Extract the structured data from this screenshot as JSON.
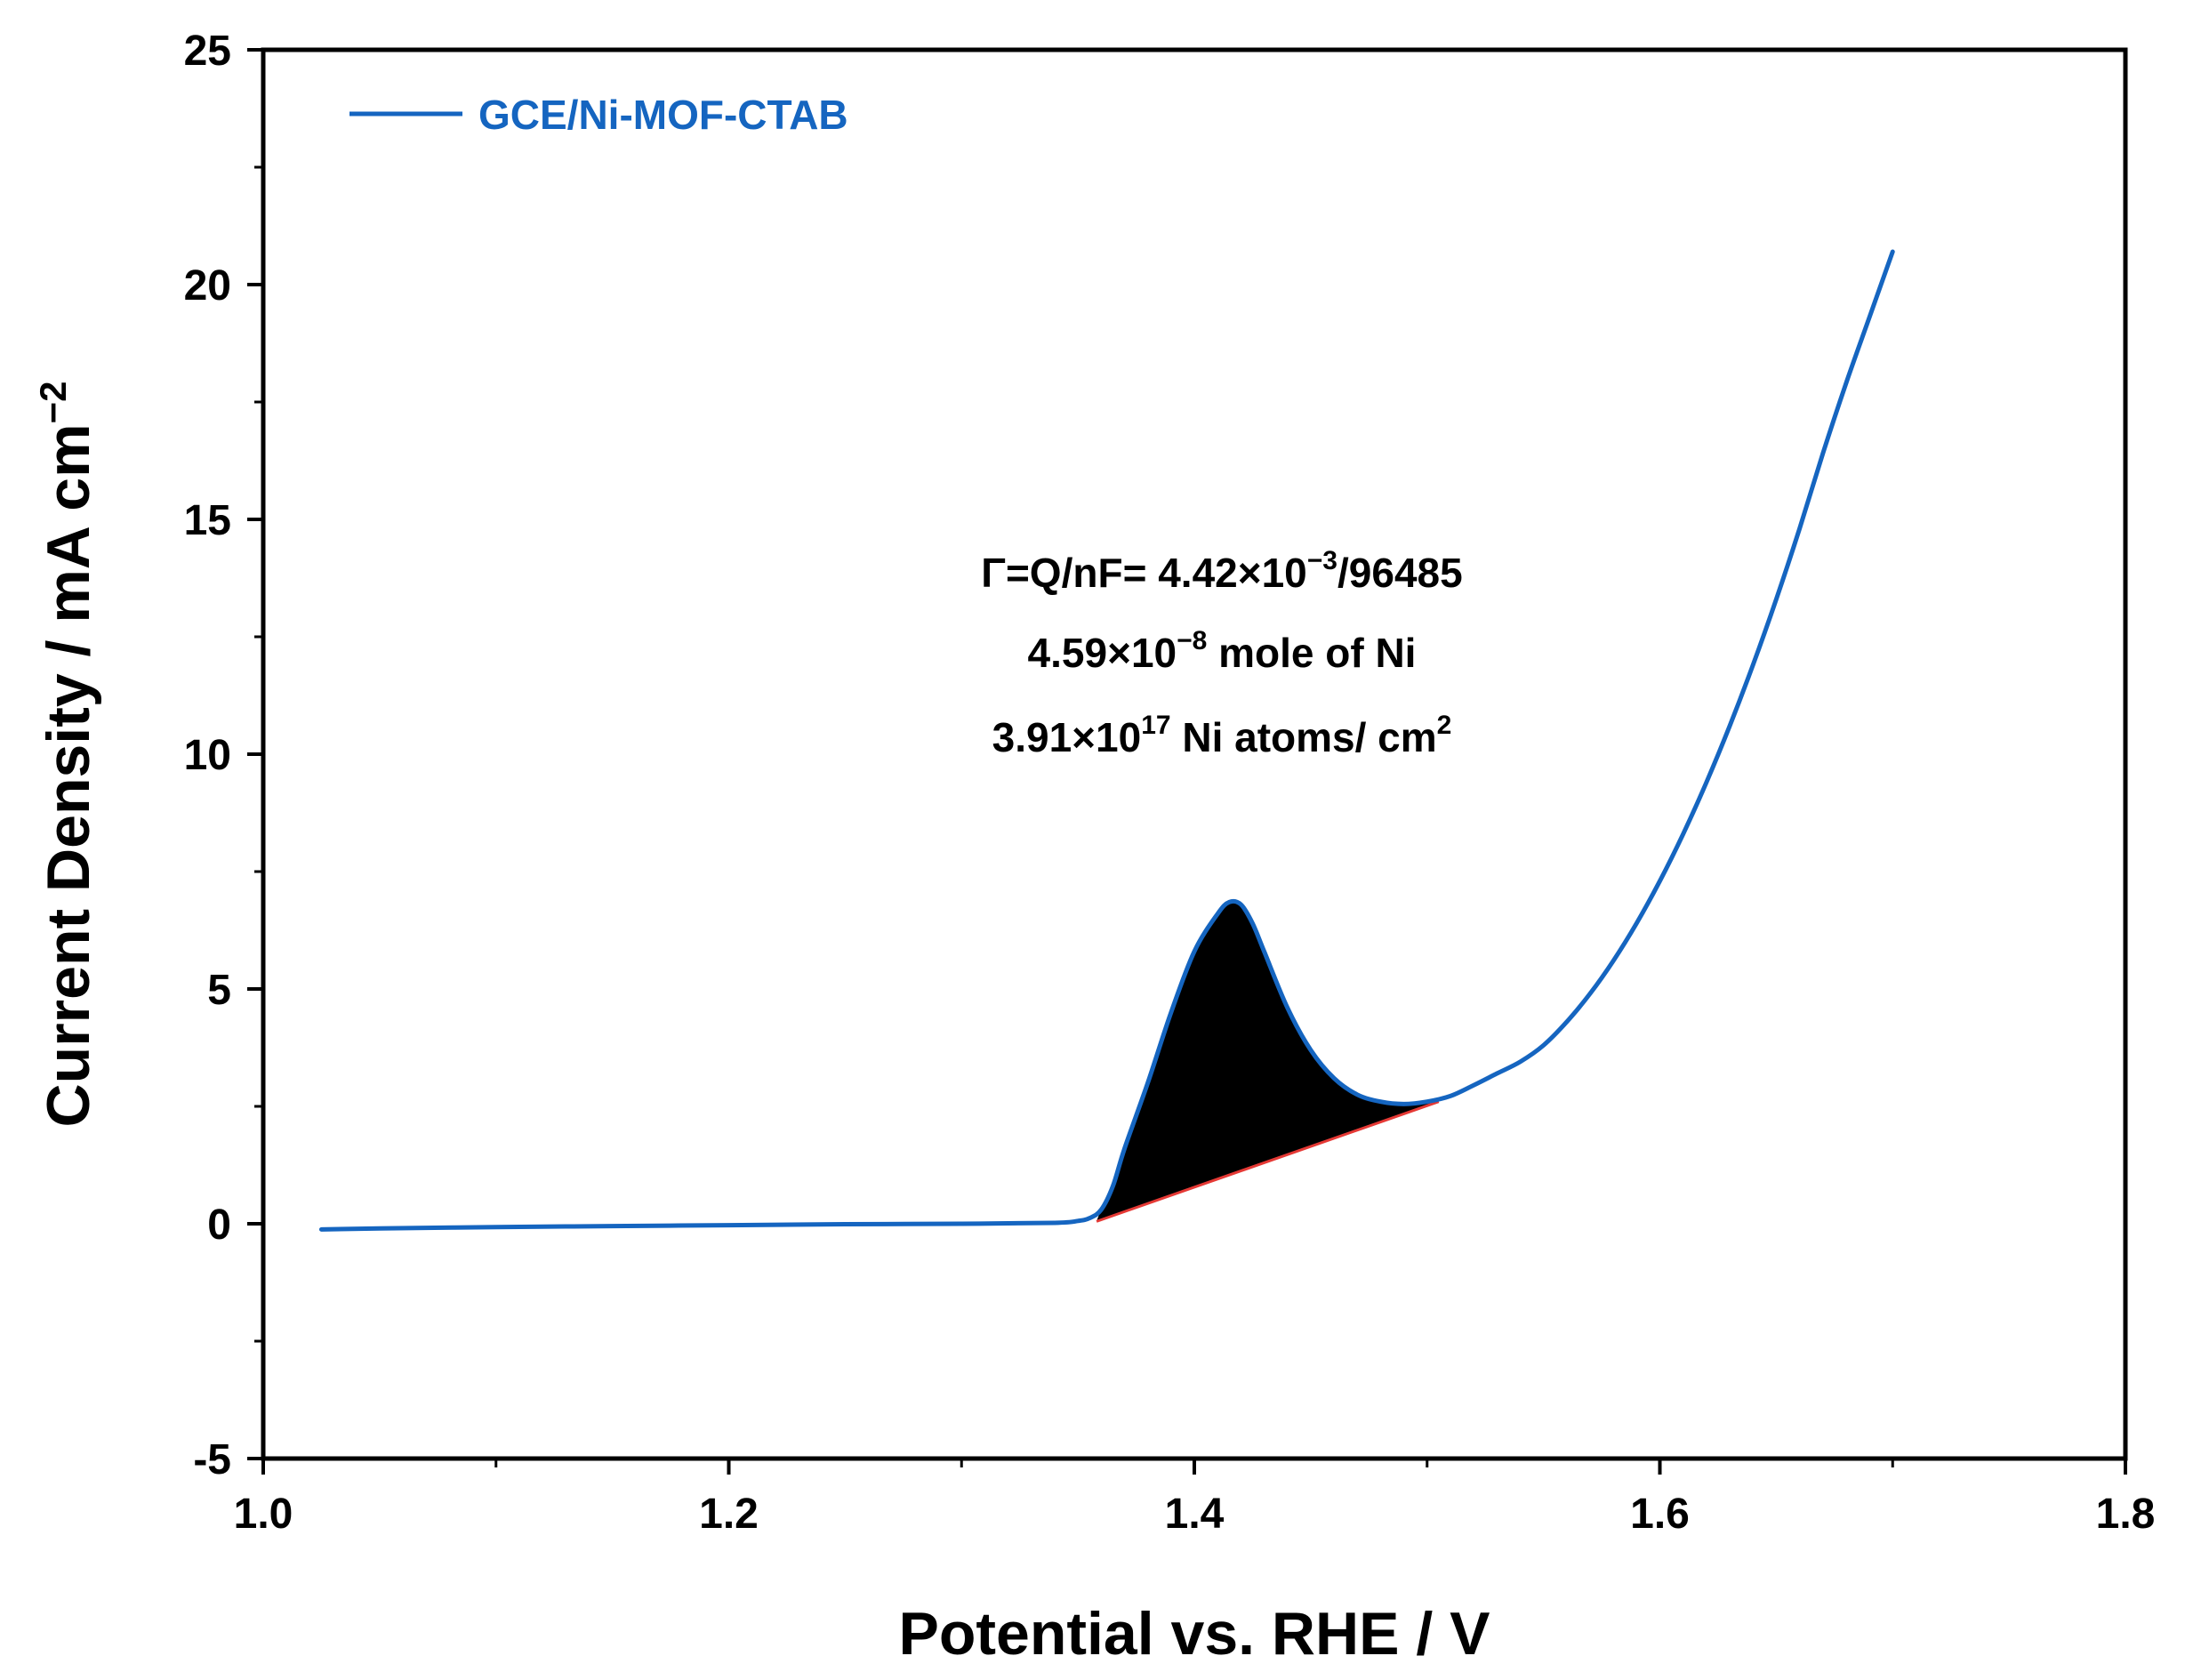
{
  "chart_data": {
    "type": "line",
    "title": "",
    "xlabel": "Potential vs. RHE / V",
    "ylabel": {
      "main": "Current Density / mA cm",
      "sup": "−2"
    },
    "xlim": [
      1.0,
      1.8
    ],
    "ylim": [
      -5,
      25
    ],
    "xticks": [
      1.0,
      1.2,
      1.4,
      1.6,
      1.8
    ],
    "xtick_labels": [
      "1.0",
      "1.2",
      "1.4",
      "1.6",
      "1.8"
    ],
    "yticks": [
      -5,
      0,
      5,
      10,
      15,
      20,
      25
    ],
    "ytick_labels": [
      "-5",
      "0",
      "5",
      "10",
      "15",
      "20",
      "25"
    ],
    "grid": false,
    "legend_position": "top-left",
    "colors": {
      "series": "#1565c0",
      "baseline": "#e53935",
      "fill": "#000000",
      "axis": "#000000"
    },
    "series": [
      {
        "name": "GCE/Ni-MOF-CTAB",
        "x": [
          1.025,
          1.05,
          1.1,
          1.15,
          1.2,
          1.25,
          1.3,
          1.34,
          1.35,
          1.355,
          1.36,
          1.365,
          1.37,
          1.38,
          1.39,
          1.4,
          1.41,
          1.415,
          1.42,
          1.425,
          1.43,
          1.44,
          1.45,
          1.46,
          1.47,
          1.48,
          1.49,
          1.5,
          1.51,
          1.52,
          1.53,
          1.54,
          1.55,
          1.56,
          1.57,
          1.58,
          1.59,
          1.6,
          1.61,
          1.62,
          1.63,
          1.64,
          1.65,
          1.66,
          1.67,
          1.68,
          1.69,
          1.7
        ],
        "values": [
          -0.12,
          -0.1,
          -0.07,
          -0.05,
          -0.03,
          -0.01,
          0.0,
          0.02,
          0.06,
          0.12,
          0.3,
          0.8,
          1.6,
          3.0,
          4.5,
          5.8,
          6.6,
          6.85,
          6.8,
          6.4,
          5.8,
          4.6,
          3.7,
          3.1,
          2.75,
          2.6,
          2.55,
          2.6,
          2.72,
          2.95,
          3.2,
          3.45,
          3.8,
          4.3,
          4.9,
          5.6,
          6.4,
          7.3,
          8.3,
          9.4,
          10.6,
          11.9,
          13.3,
          14.8,
          16.4,
          17.9,
          19.3,
          20.7
        ]
      }
    ],
    "baseline": {
      "x": [
        1.358,
        1.505
      ],
      "values": [
        0.05,
        2.6
      ]
    },
    "annotations": [
      {
        "text": "Γ=Q/nF= 4.42×10",
        "sup": "−3",
        "after": "/96485"
      },
      {
        "text": "4.59×10",
        "sup": "−8",
        "after": " mole of Ni"
      },
      {
        "text": "3.91×10",
        "sup": "17",
        "after": " Ni atoms/ cm",
        "sup2": "2"
      }
    ]
  }
}
